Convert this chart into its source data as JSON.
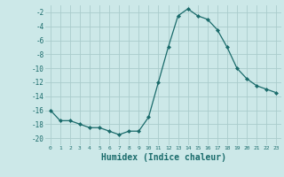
{
  "x": [
    0,
    1,
    2,
    3,
    4,
    5,
    6,
    7,
    8,
    9,
    10,
    11,
    12,
    13,
    14,
    15,
    16,
    17,
    18,
    19,
    20,
    21,
    22,
    23
  ],
  "y": [
    -16,
    -17.5,
    -17.5,
    -18,
    -18.5,
    -18.5,
    -19,
    -19.5,
    -19,
    -19,
    -17,
    -12,
    -7,
    -2.5,
    -1.5,
    -2.5,
    -3,
    -4.5,
    -7,
    -10,
    -11.5,
    -12.5,
    -13,
    -13.5
  ],
  "line_color": "#1a6b6b",
  "marker": "D",
  "marker_size": 2,
  "bg_color": "#cce8e8",
  "grid_color": "#aacccc",
  "tick_label_color": "#1a6b6b",
  "xlabel": "Humidex (Indice chaleur)",
  "xlabel_color": "#1a6b6b",
  "xlabel_fontsize": 7,
  "ytick_labels": [
    "-2",
    "-4",
    "-6",
    "-8",
    "-10",
    "-12",
    "-14",
    "-16",
    "-18",
    "-20"
  ],
  "ytick_values": [
    -2,
    -4,
    -6,
    -8,
    -10,
    -12,
    -14,
    -16,
    -18,
    -20
  ],
  "ylim": [
    -21,
    -1
  ],
  "xlim": [
    -0.5,
    23.5
  ],
  "xtick_values": [
    0,
    1,
    2,
    3,
    4,
    5,
    6,
    7,
    8,
    9,
    10,
    11,
    12,
    13,
    14,
    15,
    16,
    17,
    18,
    19,
    20,
    21,
    22,
    23
  ],
  "xtick_labels": [
    "0",
    "1",
    "2",
    "3",
    "4",
    "5",
    "6",
    "7",
    "8",
    "9",
    "10",
    "11",
    "12",
    "13",
    "14",
    "15",
    "16",
    "17",
    "18",
    "19",
    "20",
    "21",
    "22",
    "23"
  ]
}
